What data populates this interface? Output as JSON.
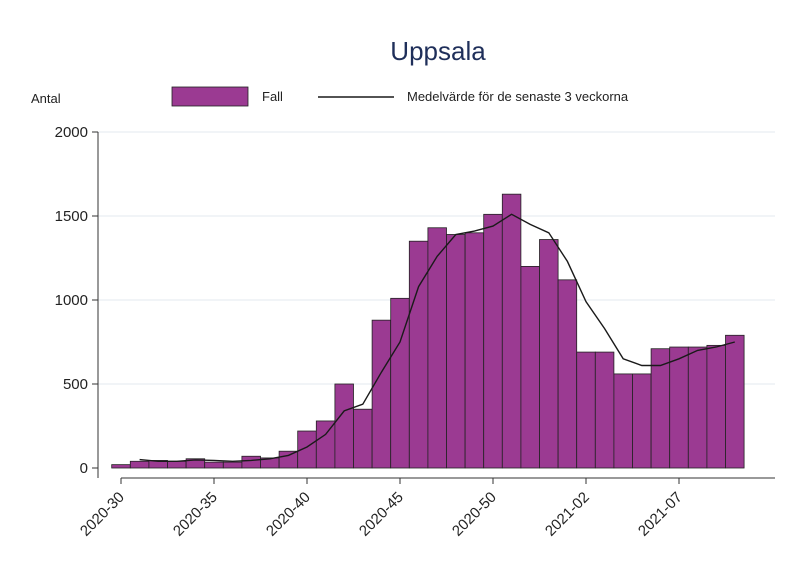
{
  "chart_data": {
    "type": "bar",
    "title": "Uppsala",
    "ylabel": "Antal",
    "xlabel": "",
    "ylim": [
      0,
      2000
    ],
    "yticks": [
      0,
      500,
      1000,
      1500,
      2000
    ],
    "x_tick_labels": [
      {
        "label": "2020-30",
        "index": 0
      },
      {
        "label": "2020-35",
        "index": 5
      },
      {
        "label": "2020-40",
        "index": 10
      },
      {
        "label": "2020-45",
        "index": 15
      },
      {
        "label": "2020-50",
        "index": 20
      },
      {
        "label": "2021-02",
        "index": 25
      },
      {
        "label": "2021-07",
        "index": 30
      }
    ],
    "categories": [
      "2020-30",
      "2020-31",
      "2020-32",
      "2020-33",
      "2020-34",
      "2020-35",
      "2020-36",
      "2020-37",
      "2020-38",
      "2020-39",
      "2020-40",
      "2020-41",
      "2020-42",
      "2020-43",
      "2020-44",
      "2020-45",
      "2020-46",
      "2020-47",
      "2020-48",
      "2020-49",
      "2020-50",
      "2020-51",
      "2020-52",
      "2020-53",
      "2021-01",
      "2021-02",
      "2021-03",
      "2021-04",
      "2021-05",
      "2021-06",
      "2021-07",
      "2021-08",
      "2021-09",
      "2021-10"
    ],
    "series": [
      {
        "name": "Fall",
        "values": [
          20,
          40,
          45,
          40,
          55,
          35,
          35,
          70,
          60,
          100,
          220,
          280,
          500,
          350,
          880,
          1010,
          1350,
          1430,
          1390,
          1400,
          1510,
          1630,
          1200,
          1360,
          1120,
          690,
          690,
          560,
          560,
          710,
          720,
          720,
          730,
          790
        ]
      },
      {
        "name": "Medelvärde för de senaste 3 veckorna",
        "values": [
          null,
          50,
          40,
          40,
          48,
          45,
          40,
          45,
          55,
          75,
          125,
          200,
          340,
          380,
          570,
          750,
          1080,
          1260,
          1390,
          1410,
          1440,
          1510,
          1450,
          1400,
          1230,
          990,
          830,
          650,
          610,
          610,
          650,
          700,
          720,
          750
        ]
      }
    ],
    "legend_position": "top",
    "grid": true,
    "colors": {
      "bar": "#9b3a92",
      "line": "#1a1a1a",
      "title": "#1f2f5a"
    }
  }
}
